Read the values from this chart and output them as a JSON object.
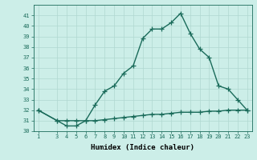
{
  "xlabel": "Humidex (Indice chaleur)",
  "x": [
    1,
    3,
    4,
    5,
    6,
    7,
    8,
    9,
    10,
    11,
    12,
    13,
    14,
    15,
    16,
    17,
    18,
    19,
    20,
    21,
    22,
    23
  ],
  "y_main": [
    32,
    31,
    30.5,
    30.5,
    31,
    32.5,
    33.8,
    34.3,
    35.5,
    36.2,
    38.8,
    39.7,
    39.7,
    40.3,
    41.2,
    39.3,
    37.8,
    37.0,
    34.3,
    34.0,
    33.0,
    32.0
  ],
  "y_secondary": [
    32,
    31,
    31,
    31,
    31,
    31.0,
    31.1,
    31.2,
    31.3,
    31.4,
    31.5,
    31.6,
    31.6,
    31.7,
    31.8,
    31.8,
    31.8,
    31.9,
    31.9,
    32.0,
    32.0,
    32.0
  ],
  "line_color": "#1a6b5a",
  "bg_color": "#cceee8",
  "grid_color": "#b0d8d0",
  "ylim": [
    30,
    42
  ],
  "yticks": [
    30,
    31,
    32,
    33,
    34,
    35,
    36,
    37,
    38,
    39,
    40,
    41
  ],
  "xlim": [
    0.5,
    23.5
  ],
  "xticks": [
    1,
    3,
    4,
    5,
    6,
    7,
    8,
    9,
    10,
    11,
    12,
    13,
    14,
    15,
    16,
    17,
    18,
    19,
    20,
    21,
    22,
    23
  ],
  "xtick_labels": [
    "1",
    "3",
    "4",
    "5",
    "6",
    "7",
    "8",
    "9",
    "10",
    "11",
    "12",
    "13",
    "14",
    "15",
    "16",
    "17",
    "18",
    "19",
    "20",
    "21",
    "22",
    "23"
  ],
  "marker": "+",
  "linewidth": 1.0,
  "markersize": 4,
  "markeredgewidth": 0.9,
  "axis_fontsize": 6.5,
  "tick_fontsize": 5.0
}
